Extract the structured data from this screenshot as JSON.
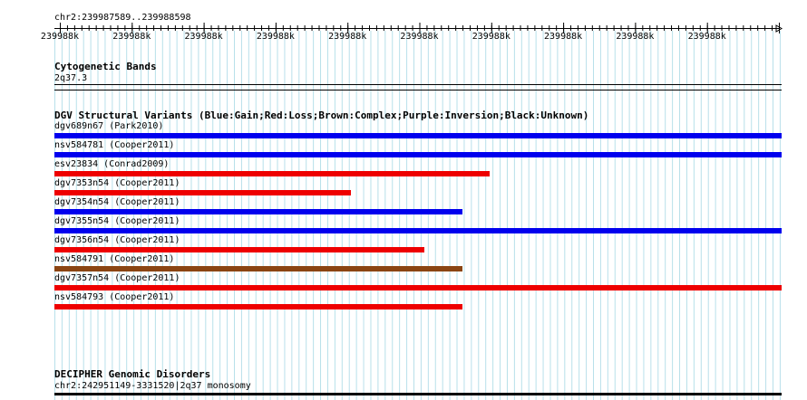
{
  "ruler": {
    "region": "chr2:239987589..239988598",
    "tick_labels": [
      "239988k",
      "239988k",
      "239988k",
      "239988k",
      "239988k",
      "239988k",
      "239988k",
      "239988k",
      "239988k",
      "239988k"
    ]
  },
  "cytoband": {
    "title": "Cytogenetic Bands",
    "band": "2q37.3"
  },
  "dgv": {
    "title": "DGV Structural Variants (Blue:Gain;Red:Loss;Brown:Complex;Purple:Inversion;Black:Unknown)",
    "colors": {
      "gain": "#0000ee",
      "loss": "#ee0000",
      "complex": "#8b4513"
    },
    "features": [
      {
        "label": "dgv689n67 (Park2010)",
        "type": "gain",
        "extent": 1.0
      },
      {
        "label": "nsv584781 (Cooper2011)",
        "type": "gain",
        "extent": 1.0
      },
      {
        "label": "esv23834 (Conrad2009)",
        "type": "loss",
        "extent": 0.598
      },
      {
        "label": "dgv7353n54 (Cooper2011)",
        "type": "loss",
        "extent": 0.408
      },
      {
        "label": "dgv7354n54 (Cooper2011)",
        "type": "gain",
        "extent": 0.561
      },
      {
        "label": "dgv7355n54 (Cooper2011)",
        "type": "gain",
        "extent": 1.0
      },
      {
        "label": "dgv7356n54 (Cooper2011)",
        "type": "loss",
        "extent": 0.509
      },
      {
        "label": "nsv584791 (Cooper2011)",
        "type": "complex",
        "extent": 0.561
      },
      {
        "label": "dgv7357n54 (Cooper2011)",
        "type": "loss",
        "extent": 1.0
      },
      {
        "label": "nsv584793 (Cooper2011)",
        "type": "loss",
        "extent": 0.561
      }
    ]
  },
  "decipher": {
    "title": "DECIPHER Genomic Disorders",
    "feature": "chr2:242951149-3331520|2q37 monosomy"
  }
}
